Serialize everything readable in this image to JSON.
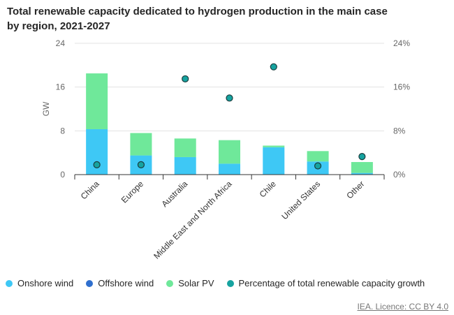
{
  "chart_data": {
    "type": "bar",
    "stacked": true,
    "title": "Total renewable capacity dedicated to hydrogen production in the main case by region, 2021-2027",
    "ylabel": "GW",
    "ylim": [
      0,
      24
    ],
    "y2lim": [
      0,
      24
    ],
    "yticks": [
      "0",
      "8",
      "16",
      "24"
    ],
    "y2ticks": [
      "0%",
      "8%",
      "16%",
      "24%"
    ],
    "categories": [
      "China",
      "Europe",
      "Australia",
      "Middle East and North Africa",
      "Chile",
      "United States",
      "Other"
    ],
    "series": [
      {
        "name": "Onshore wind",
        "color": "#3ec8f5",
        "values": [
          8.3,
          3.5,
          3.2,
          2.0,
          5.0,
          2.4,
          0.3
        ]
      },
      {
        "name": "Offshore wind",
        "color": "#2f6fce",
        "values": [
          0,
          0,
          0,
          0,
          0,
          0,
          0
        ]
      },
      {
        "name": "Solar PV",
        "color": "#6fe89a",
        "values": [
          10.2,
          4.1,
          3.4,
          4.3,
          0.3,
          1.9,
          2.0
        ]
      },
      {
        "name": "Percentage of total renewable capacity growth",
        "color": "#16a3a0",
        "type": "scatter",
        "axis": "secondary",
        "values": [
          1.8,
          1.8,
          17.5,
          14.0,
          19.7,
          1.6,
          3.3
        ]
      }
    ]
  },
  "source": "IEA. Licence: CC BY 4.0"
}
